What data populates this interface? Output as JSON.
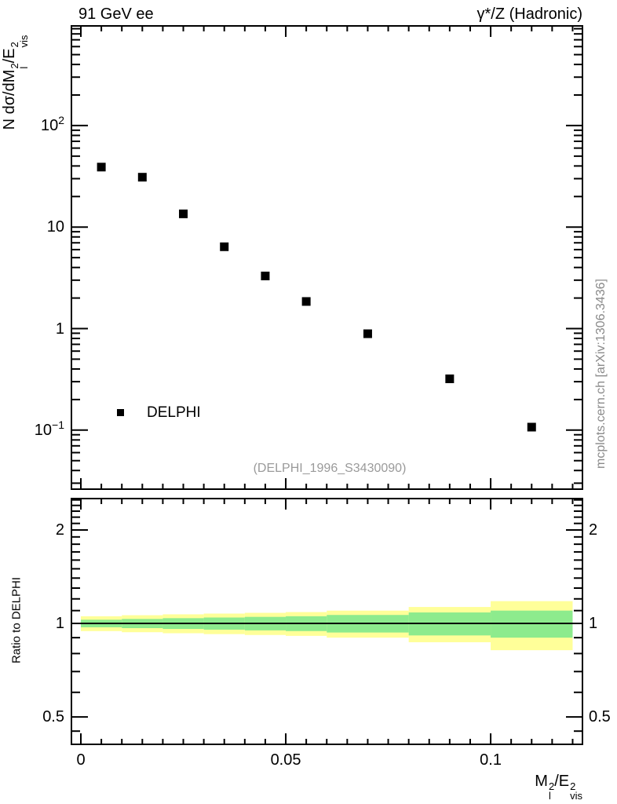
{
  "chart_data": {
    "type": "scatter",
    "titles": {
      "left": "91 GeV ee",
      "right": "γ*/Z (Hadronic)"
    },
    "axis_titles": {
      "main_y_rich": [
        {
          "t": "N dσ/dM"
        },
        {
          "sup": "2",
          "sub": "l"
        },
        {
          "t": "/E"
        },
        {
          "sup": "2",
          "sub": "vis"
        }
      ],
      "x_rich": [
        {
          "t": "M"
        },
        {
          "sup": "2",
          "sub": "l"
        },
        {
          "t": "/E"
        },
        {
          "sup": "2",
          "sub": "vis"
        }
      ],
      "ratio_y": "Ratio to DELPHI"
    },
    "watermark": "(DELPHI_1996_S3430090)",
    "side_note": "mcplots.cern.ch [arXiv:1306.3436]",
    "legend": {
      "label": "DELPHI",
      "marker": "filled-square",
      "marker_color": "#000000"
    },
    "x_axis": {
      "min": -0.0023,
      "max": 0.1224,
      "minor_step": 0.005,
      "major_ticks": [
        {
          "value": 0,
          "label": "0"
        },
        {
          "value": 0.05,
          "label": "0.05"
        },
        {
          "value": 0.1,
          "label": "0.1"
        }
      ]
    },
    "main_y_axis": {
      "scale": "log",
      "min": 0.0262,
      "max": 959,
      "major_ticks": [
        {
          "value": 100,
          "base": "10",
          "exp": "2"
        },
        {
          "value": 10,
          "base": "10",
          "exp": ""
        },
        {
          "value": 1,
          "base": "1",
          "exp": ""
        },
        {
          "value": 0.1,
          "base": "10",
          "exp": "−1"
        }
      ]
    },
    "ratio_y_axis": {
      "scale": "log",
      "min": 0.408,
      "max": 2.525,
      "major_ticks": [
        {
          "value": 2,
          "label": "2"
        },
        {
          "value": 1,
          "label": "1"
        },
        {
          "value": 0.5,
          "label": "0.5"
        }
      ],
      "minor_extra": [
        0.45
      ]
    },
    "series": [
      {
        "name": "DELPHI",
        "marker": "filled-square",
        "color": "#000000",
        "x": [
          0.005,
          0.015,
          0.025,
          0.035,
          0.045,
          0.055,
          0.07,
          0.09,
          0.11
        ],
        "y": [
          39,
          31,
          13.5,
          6.4,
          3.3,
          1.85,
          0.89,
          0.32,
          0.107
        ]
      }
    ],
    "ratio_bands": {
      "outer_color": "#ffff99",
      "inner_color": "#8deb8d",
      "unity_line_color": "#000000",
      "unity_value": 1,
      "bins": [
        {
          "x1": 0.0,
          "x2": 0.01,
          "outer": 0.055,
          "inner": 0.028
        },
        {
          "x1": 0.01,
          "x2": 0.02,
          "outer": 0.063,
          "inner": 0.034
        },
        {
          "x1": 0.02,
          "x2": 0.03,
          "outer": 0.07,
          "inner": 0.04
        },
        {
          "x1": 0.03,
          "x2": 0.04,
          "outer": 0.076,
          "inner": 0.045
        },
        {
          "x1": 0.04,
          "x2": 0.05,
          "outer": 0.082,
          "inner": 0.05
        },
        {
          "x1": 0.05,
          "x2": 0.06,
          "outer": 0.088,
          "inner": 0.055
        },
        {
          "x1": 0.06,
          "x2": 0.08,
          "outer": 0.1,
          "inner": 0.065
        },
        {
          "x1": 0.08,
          "x2": 0.1,
          "outer": 0.13,
          "inner": 0.085
        },
        {
          "x1": 0.1,
          "x2": 0.12,
          "outer": 0.18,
          "inner": 0.1
        }
      ]
    },
    "colors": {
      "axis": "#000000",
      "text": "#000000",
      "muted_text": "#9a9a9a"
    }
  }
}
